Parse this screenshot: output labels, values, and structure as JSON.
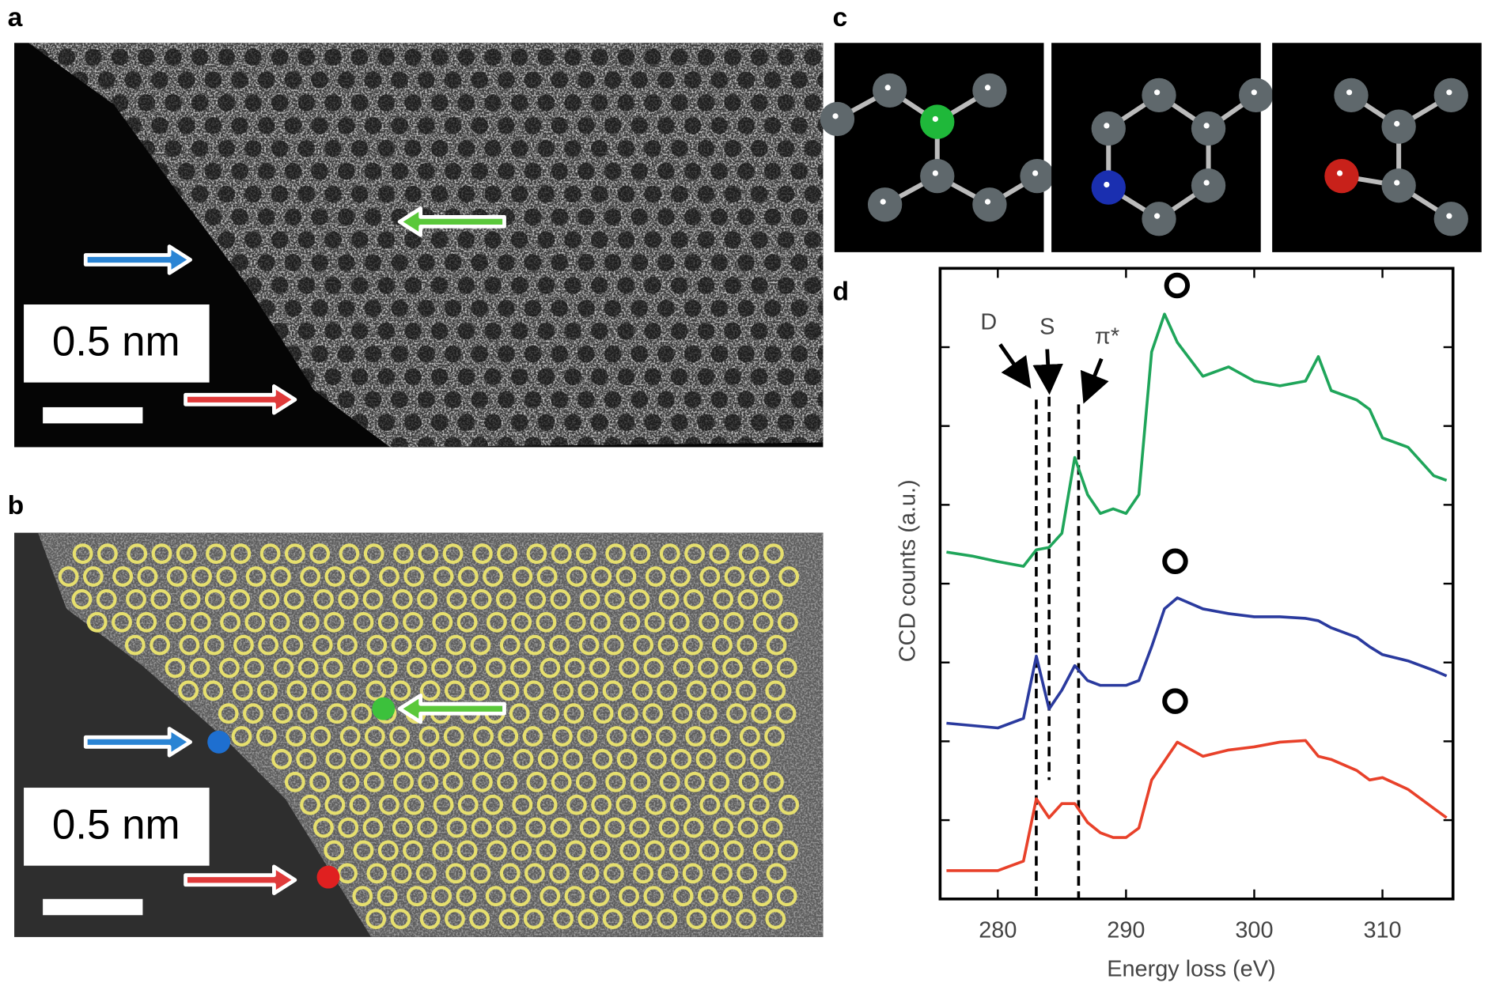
{
  "panels": {
    "a": "a",
    "b": "b",
    "c": "c",
    "d": "d"
  },
  "scale_bars": [
    "0.5 nm",
    "0.5 nm"
  ],
  "chart_data": {
    "type": "line",
    "xlabel": "Energy loss (eV)",
    "ylabel": "CCD counts (a.u.)",
    "xlim": [
      275.5,
      315.5
    ],
    "xticks": [
      280,
      290,
      300,
      310
    ],
    "ylim": [
      0,
      8
    ],
    "yticks": [
      1,
      2,
      3,
      4,
      5,
      6,
      7
    ],
    "x": [
      276,
      278,
      280,
      282,
      283,
      284,
      285,
      286,
      287,
      288,
      289,
      290,
      291,
      292,
      293,
      294,
      296,
      298,
      300,
      302,
      304,
      305,
      306,
      308,
      309,
      310,
      312,
      314,
      315
    ],
    "series": [
      {
        "color": "#1fa55a",
        "values": [
          4.4,
          4.35,
          4.28,
          4.22,
          4.43,
          4.46,
          4.64,
          5.6,
          5.13,
          4.89,
          4.95,
          4.89,
          5.13,
          6.94,
          7.42,
          7.06,
          6.63,
          6.75,
          6.57,
          6.51,
          6.57,
          6.88,
          6.45,
          6.33,
          6.21,
          5.85,
          5.73,
          5.37,
          5.31
        ]
      },
      {
        "color": "#2a3a9e",
        "values": [
          2.23,
          2.2,
          2.17,
          2.29,
          3.08,
          2.41,
          2.65,
          2.96,
          2.77,
          2.71,
          2.71,
          2.71,
          2.77,
          3.2,
          3.68,
          3.82,
          3.68,
          3.62,
          3.58,
          3.58,
          3.56,
          3.53,
          3.44,
          3.32,
          3.2,
          3.1,
          3.02,
          2.9,
          2.83
        ]
      },
      {
        "color": "#e8412a",
        "values": [
          0.36,
          0.36,
          0.36,
          0.48,
          1.27,
          1.03,
          1.21,
          1.21,
          0.97,
          0.84,
          0.78,
          0.78,
          0.9,
          1.51,
          1.75,
          1.99,
          1.81,
          1.89,
          1.93,
          1.99,
          2.01,
          1.81,
          1.77,
          1.63,
          1.51,
          1.54,
          1.39,
          1.15,
          1.03
        ]
      }
    ],
    "annotations": [
      {
        "text": "D",
        "x": 283
      },
      {
        "text": "S",
        "x": 284
      },
      {
        "text": "π*",
        "x": 286.3
      }
    ]
  }
}
